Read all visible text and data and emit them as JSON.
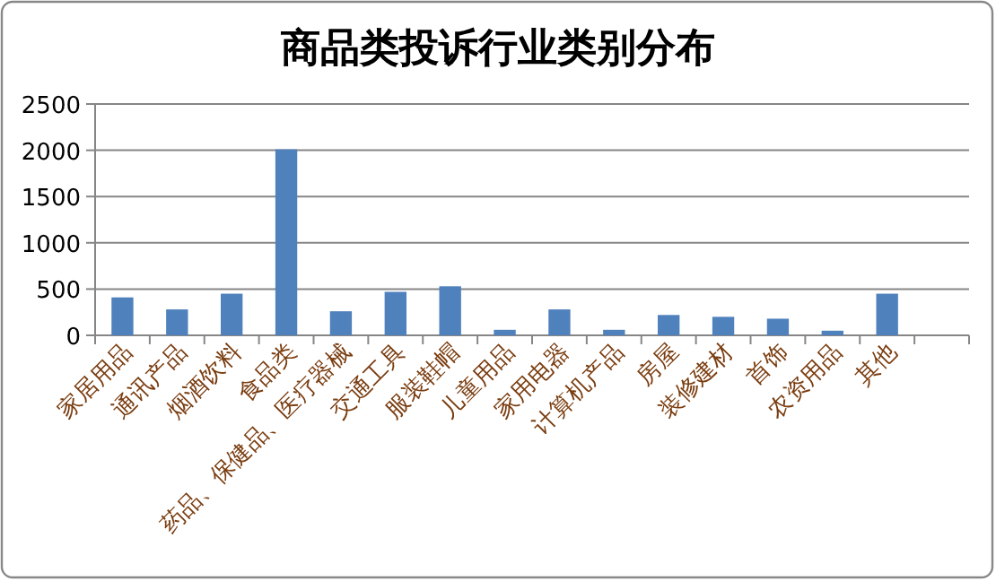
{
  "chart_data": {
    "type": "bar",
    "title": "商品类投诉行业类别分布",
    "categories": [
      "家居用品",
      "通讯产品",
      "烟酒饮料",
      "食品类",
      "药品、保健品、医疗器械",
      "交通工具",
      "服装鞋帽",
      "儿童用品",
      "家用电器",
      "计算机产品",
      "房屋",
      "装修建材",
      "首饰",
      "农资用品",
      "其他",
      null
    ],
    "values": [
      410,
      280,
      450,
      2010,
      260,
      470,
      530,
      60,
      280,
      60,
      220,
      200,
      180,
      50,
      450,
      null
    ],
    "color": "#4f81bd",
    "ylim": [
      0,
      2500
    ],
    "yticks": [
      0,
      500,
      1000,
      1500,
      2000,
      2500
    ],
    "grid": "y"
  }
}
